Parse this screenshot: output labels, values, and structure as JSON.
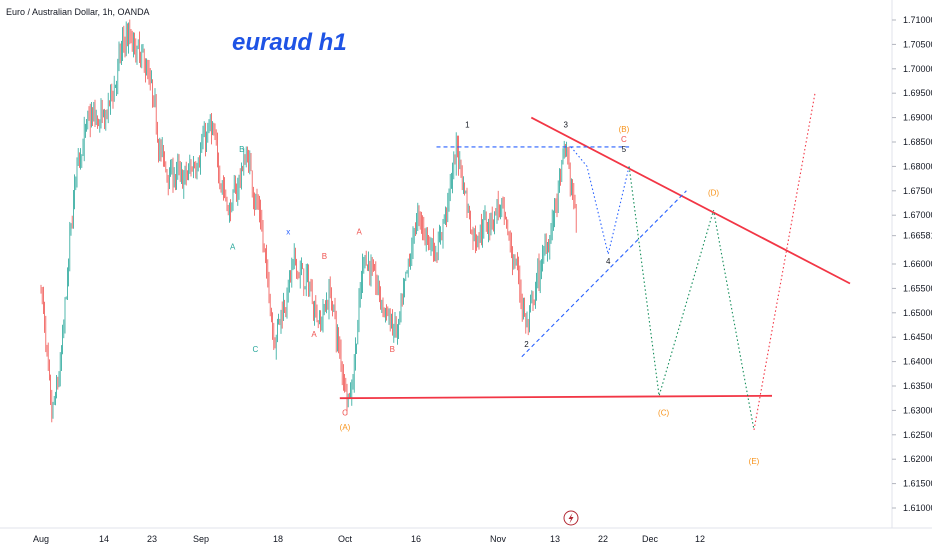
{
  "header": {
    "symbol": "Euro / Australian Dollar, 1h, OANDA",
    "title": "euraud h1"
  },
  "colors": {
    "up": "#26a69a",
    "down": "#ef5350",
    "trendline": "#f23645",
    "blue_dash": "#2962ff",
    "green_dot": "#138d5a",
    "orange": "#f7931a",
    "axis_text": "#131722"
  },
  "icons": {
    "lightning": "lightning-icon"
  },
  "chart_data": {
    "type": "candlestick",
    "instrument": "EUR/AUD",
    "timeframe": "1h",
    "ylim": [
      1.6,
      1.715
    ],
    "y_ticks": [
      "1.71000",
      "1.70500",
      "1.70000",
      "1.69500",
      "1.69000",
      "1.68500",
      "1.68000",
      "1.67500",
      "1.67000",
      "1.66581",
      "1.66000",
      "1.65500",
      "1.65000",
      "1.64500",
      "1.64000",
      "1.63500",
      "1.63000",
      "1.62500",
      "1.62000",
      "1.61500",
      "1.61000"
    ],
    "current_price": "1.66581",
    "x_ticks": [
      "Aug",
      "14",
      "23",
      "Sep",
      "18",
      "Oct",
      "16",
      "Nov",
      "13",
      "22",
      "Dec",
      "12"
    ],
    "price_path": [
      {
        "date": "Aug 1",
        "price": 1.655
      },
      {
        "date": "Aug 3",
        "price": 1.627
      },
      {
        "date": "Aug 5",
        "price": 1.64
      },
      {
        "date": "Aug 8",
        "price": 1.68
      },
      {
        "date": "Aug 11",
        "price": 1.69
      },
      {
        "date": "Aug 14",
        "price": 1.689
      },
      {
        "date": "Aug 18",
        "price": 1.707
      },
      {
        "date": "Aug 22",
        "price": 1.7
      },
      {
        "date": "Aug 25",
        "price": 1.68
      },
      {
        "date": "Aug 29",
        "price": 1.677
      },
      {
        "date": "Sep 3",
        "price": 1.688
      },
      {
        "date": "Sep 7",
        "price": 1.67
      },
      {
        "date": "Sep 11",
        "price": 1.683
      },
      {
        "date": "Sep 14",
        "price": 1.668
      },
      {
        "date": "Sep 17",
        "price": 1.645
      },
      {
        "date": "Sep 21",
        "price": 1.66
      },
      {
        "date": "Sep 24",
        "price": 1.655
      },
      {
        "date": "Sep 26",
        "price": 1.648
      },
      {
        "date": "Sep 28",
        "price": 1.655
      },
      {
        "date": "Sep 30",
        "price": 1.64
      },
      {
        "date": "Oct 2",
        "price": 1.632
      },
      {
        "date": "Oct 5",
        "price": 1.663
      },
      {
        "date": "Oct 9",
        "price": 1.651
      },
      {
        "date": "Oct 12",
        "price": 1.645
      },
      {
        "date": "Oct 16",
        "price": 1.67
      },
      {
        "date": "Oct 20",
        "price": 1.662
      },
      {
        "date": "Oct 24",
        "price": 1.684
      },
      {
        "date": "Oct 27",
        "price": 1.665
      },
      {
        "date": "Nov 1",
        "price": 1.672
      },
      {
        "date": "Nov 5",
        "price": 1.658
      },
      {
        "date": "Nov 7",
        "price": 1.646
      },
      {
        "date": "Nov 10",
        "price": 1.66
      },
      {
        "date": "Nov 13",
        "price": 1.672
      },
      {
        "date": "Nov 15",
        "price": 1.684
      },
      {
        "date": "Nov 17",
        "price": 1.666
      }
    ],
    "lines": [
      {
        "name": "upper-trendline",
        "style": "solid",
        "color": "trendline",
        "points": [
          [
            "Nov 8",
            1.69
          ],
          [
            "Jan 13",
            1.656
          ]
        ]
      },
      {
        "name": "lower-support-line",
        "style": "solid",
        "color": "trendline",
        "points": [
          [
            "Sep 30",
            1.6325
          ],
          [
            "Dec 28",
            1.633
          ]
        ]
      },
      {
        "name": "blue-horizontal-dash",
        "style": "dashed",
        "color": "blue_dash",
        "points": [
          [
            "Oct 20",
            1.684
          ],
          [
            "Nov 27",
            1.684
          ]
        ]
      },
      {
        "name": "blue-rising-dash",
        "style": "dashed",
        "color": "blue_dash",
        "points": [
          [
            "Nov 6",
            1.641
          ],
          [
            "Dec 9",
            1.675
          ]
        ]
      },
      {
        "name": "blue-projection-path",
        "style": "dotted",
        "color": "blue_dash",
        "points": [
          [
            "Nov 16",
            1.684
          ],
          [
            "Nov 19",
            1.68
          ],
          [
            "Nov 23",
            1.662
          ],
          [
            "Nov 27",
            1.68
          ]
        ]
      },
      {
        "name": "green-projection-path",
        "style": "dotted",
        "color": "green_dot",
        "points": [
          [
            "Nov 27",
            1.68
          ],
          [
            "Dec 3",
            1.633
          ],
          [
            "Dec 15",
            1.671
          ],
          [
            "Dec 24",
            1.626
          ]
        ]
      },
      {
        "name": "red-projection-path",
        "style": "dotted",
        "color": "trendline",
        "points": [
          [
            "Dec 24",
            1.626
          ],
          [
            "Jan 6",
            1.695
          ]
        ]
      }
    ],
    "wave_labels": [
      {
        "text": "B",
        "date": "Sep 10",
        "price": 1.683,
        "color": "up"
      },
      {
        "text": "A",
        "date": "Sep 8",
        "price": 1.663,
        "color": "up"
      },
      {
        "text": "C",
        "date": "Sep 13",
        "price": 1.642,
        "color": "up"
      },
      {
        "text": "x",
        "date": "Sep 20",
        "price": 1.666,
        "color": "blue_dash"
      },
      {
        "text": "A",
        "date": "Sep 25",
        "price": 1.645,
        "color": "down"
      },
      {
        "text": "B",
        "date": "Sep 27",
        "price": 1.661,
        "color": "down"
      },
      {
        "text": "C",
        "date": "Oct 1",
        "price": 1.629,
        "color": "down"
      },
      {
        "text": "(A)",
        "date": "Oct 1",
        "price": 1.626,
        "color": "orange"
      },
      {
        "text": "A",
        "date": "Oct 4",
        "price": 1.666,
        "color": "down"
      },
      {
        "text": "B",
        "date": "Oct 11",
        "price": 1.642,
        "color": "down"
      },
      {
        "text": "1",
        "date": "Oct 26",
        "price": 1.688,
        "color": "axis_text"
      },
      {
        "text": "2",
        "date": "Nov 7",
        "price": 1.643,
        "color": "axis_text"
      },
      {
        "text": "3",
        "date": "Nov 15",
        "price": 1.688,
        "color": "axis_text"
      },
      {
        "text": "4",
        "date": "Nov 23",
        "price": 1.66,
        "color": "axis_text"
      },
      {
        "text": "5",
        "date": "Nov 26",
        "price": 1.683,
        "color": "axis_text"
      },
      {
        "text": "(B)",
        "date": "Nov 26",
        "price": 1.687,
        "color": "orange"
      },
      {
        "text": "C",
        "date": "Nov 26",
        "price": 1.685,
        "color": "down"
      },
      {
        "text": "(C)",
        "date": "Dec 4",
        "price": 1.629,
        "color": "orange"
      },
      {
        "text": "(D)",
        "date": "Dec 15",
        "price": 1.674,
        "color": "orange"
      },
      {
        "text": "(E)",
        "date": "Dec 24",
        "price": 1.619,
        "color": "orange"
      }
    ]
  }
}
